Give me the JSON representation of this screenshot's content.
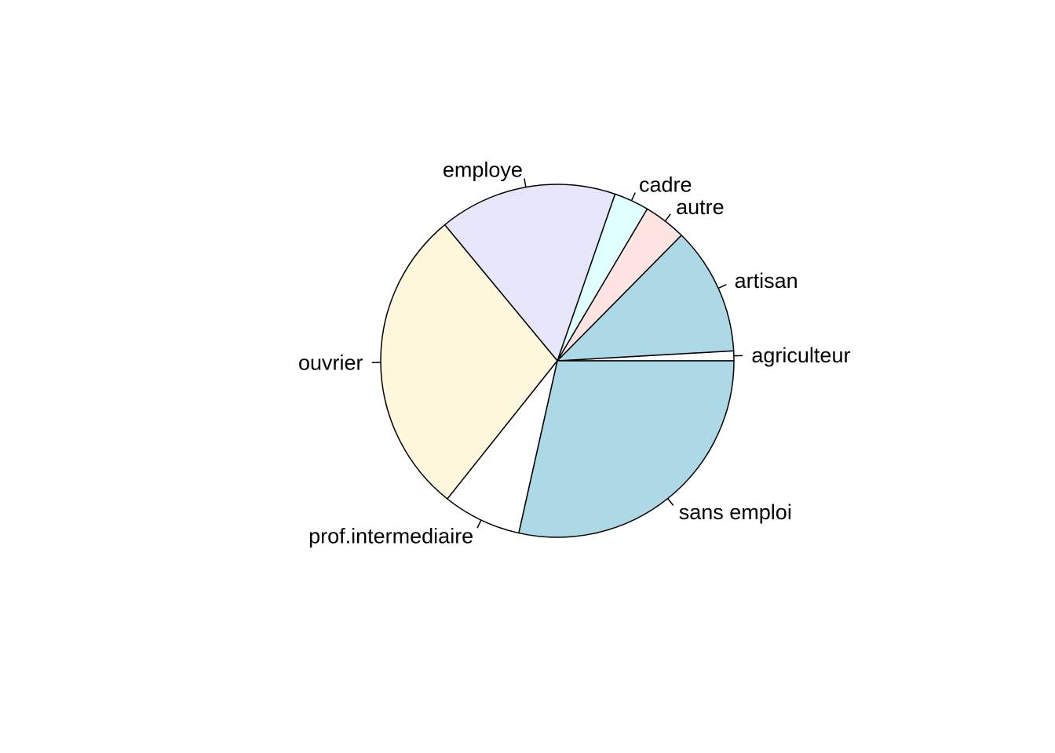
{
  "chart_data": {
    "type": "pie",
    "title": "",
    "start_angle_deg": 0,
    "direction": "counterclockwise",
    "slices": [
      {
        "label": "agriculteur",
        "value": 0.9,
        "color": "#FFFFFF"
      },
      {
        "label": "artisan",
        "value": 11.7,
        "color": "#ADD8E6"
      },
      {
        "label": "autre",
        "value": 3.9,
        "color": "#FFE4E1"
      },
      {
        "label": "cadre",
        "value": 3.2,
        "color": "#E0FFFF"
      },
      {
        "label": "employe",
        "value": 16.3,
        "color": "#E6E6FA"
      },
      {
        "label": "ouvrier",
        "value": 28.3,
        "color": "#FFF8DC"
      },
      {
        "label": "prof.intermediaire",
        "value": 7.2,
        "color": "#FFFFFF"
      },
      {
        "label": "sans emploi",
        "value": 28.5,
        "color": "#ADD8E6"
      }
    ]
  }
}
